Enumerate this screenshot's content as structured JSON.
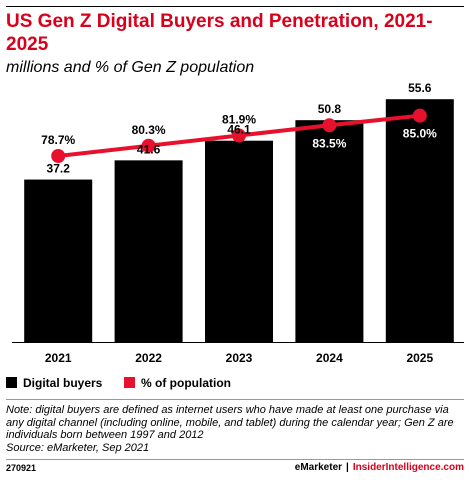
{
  "header": {
    "title": "US Gen Z Digital Buyers and Penetration, 2021-2025",
    "subtitle": "millions and % of Gen Z population"
  },
  "legend": {
    "bars_label": "Digital buyers",
    "line_label": "% of population"
  },
  "footer": {
    "note": "Note: digital buyers are defined as internet users who have made at least one purchase via any digital channel (including online, mobile, and tablet) during the calendar year; Gen Z are individuals born between 1997 and 2012",
    "source": "Source: eMarketer, Sep 2021",
    "chart_id": "270921",
    "brand": "eMarketer",
    "separator": "|",
    "brand2": "InsiderIntelligence.com"
  },
  "colors": {
    "bar": "#000000",
    "line": "#e8112d",
    "title": "#d9001b"
  },
  "chart_data": {
    "type": "bar",
    "categories": [
      "2021",
      "2022",
      "2023",
      "2024",
      "2025"
    ],
    "series": [
      {
        "name": "Digital buyers",
        "type": "bar",
        "values": [
          37.2,
          41.6,
          46.1,
          50.8,
          55.6
        ],
        "labels": [
          "37.2",
          "41.6",
          "46.1",
          "50.8",
          "55.6"
        ]
      },
      {
        "name": "% of population",
        "type": "line",
        "values": [
          78.7,
          80.3,
          81.9,
          83.5,
          85.0
        ],
        "labels": [
          "78.7%",
          "80.3%",
          "81.9%",
          "83.5%",
          "85.0%"
        ]
      }
    ],
    "ylim": [
      0,
      60
    ],
    "grid": false,
    "legend_position": "bottom-left"
  }
}
